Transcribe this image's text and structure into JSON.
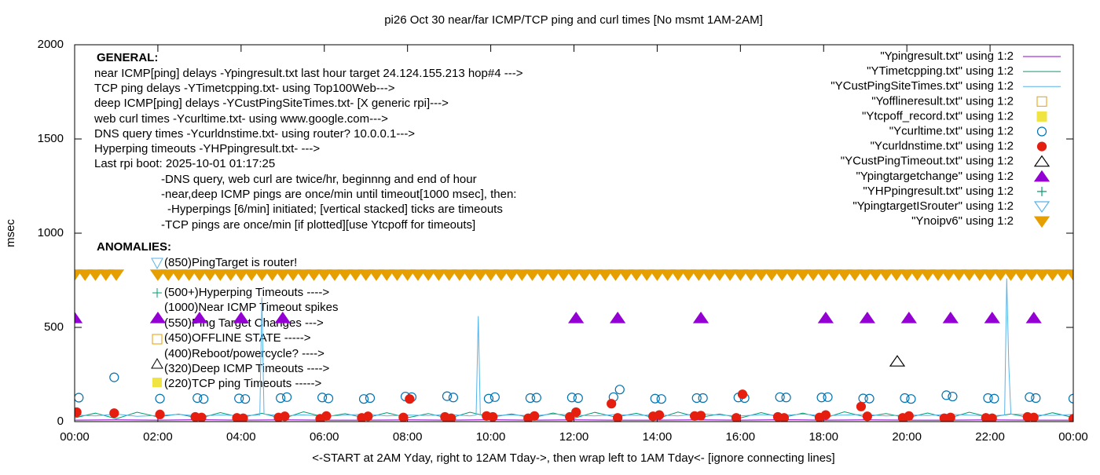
{
  "chart_data": {
    "type": "line",
    "title": "pi26 Oct 30  near/far ICMP/TCP ping and curl times [No msmt 1AM-2AM]",
    "xlabel": "<-START at 2AM Yday, right to 12AM Tday->, then wrap left to 1AM Tday<- [ignore connecting lines]",
    "ylabel": "msec",
    "xlim": [
      0,
      24
    ],
    "ylim": [
      0,
      2000
    ],
    "xticks": [
      {
        "value": 0,
        "label": "00:00"
      },
      {
        "value": 2,
        "label": "02:00"
      },
      {
        "value": 4,
        "label": "04:00"
      },
      {
        "value": 6,
        "label": "06:00"
      },
      {
        "value": 8,
        "label": "08:00"
      },
      {
        "value": 10,
        "label": "10:00"
      },
      {
        "value": 12,
        "label": "12:00"
      },
      {
        "value": 14,
        "label": "14:00"
      },
      {
        "value": 16,
        "label": "16:00"
      },
      {
        "value": 18,
        "label": "18:00"
      },
      {
        "value": 20,
        "label": "20:00"
      },
      {
        "value": 22,
        "label": "22:00"
      },
      {
        "value": 24,
        "label": "00:00"
      }
    ],
    "yticks": [
      0,
      500,
      1000,
      1500,
      2000
    ],
    "legend": "top-right",
    "annotations": [
      "GENERAL:",
      "near ICMP[ping] delays -Ypingresult.txt last hour target 24.124.155.213 hop#4 --->",
      "TCP ping delays -YTimetcpping.txt- using Top100Web--->",
      "deep ICMP[ping] delays -YCustPingSiteTimes.txt- [X generic rpi]--->",
      "web curl times -Ycurltime.txt- using www.google.com--->",
      "DNS query times -Ycurldnstime.txt- using router? 10.0.0.1--->",
      "Hyperping timeouts -YHPpingresult.txt- --->",
      "Last rpi boot: 2025-10-01 01:17:25",
      "-DNS query, web curl are twice/hr, beginnng and end of hour",
      "-near,deep ICMP pings are once/min until timeout[1000 msec], then:",
      "-Hyperpings [6/min] initiated; [vertical stacked] ticks are timeouts",
      "-TCP pings are once/min [if plotted][use Ytcpoff for timeouts]",
      "ANOMALIES:",
      "(850)PingTarget is router!",
      "(500+)Hyperping Timeouts ---->",
      "(1000)Near ICMP Timeout spikes",
      "(550)Ping Target Changes --->",
      "(450)OFFLINE STATE ----->",
      "(400)Reboot/powercycle? ---->",
      "(320)Deep ICMP Timeouts ---->",
      "(220)TCP ping Timeouts ----->"
    ],
    "series": [
      {
        "name": "\"Ypingresult.txt\" using 1:2",
        "color": "#9400d3",
        "style": "line",
        "x": [
          0,
          1,
          2,
          3,
          4,
          5,
          6,
          7,
          8,
          9,
          10,
          11,
          12,
          13,
          14,
          15,
          16,
          17,
          18,
          19,
          20,
          21,
          22,
          23,
          24
        ],
        "values": [
          8,
          9,
          8,
          10,
          8,
          9,
          8,
          8,
          9,
          8,
          10,
          8,
          9,
          8,
          8,
          9,
          8,
          10,
          8,
          9,
          8,
          8,
          9,
          8,
          8
        ]
      },
      {
        "name": "\"YTimetcpping.txt\" using 1:2",
        "color": "#009e73",
        "style": "line",
        "x": [
          0,
          0.5,
          1,
          1.5,
          2,
          2.5,
          3,
          3.5,
          4,
          4.5,
          5,
          5.5,
          6,
          6.5,
          7,
          7.5,
          8,
          8.5,
          9,
          9.5,
          10,
          10.5,
          11,
          11.5,
          12,
          12.5,
          13,
          13.5,
          14,
          14.5,
          15,
          15.5,
          16,
          16.5,
          17,
          17.5,
          18,
          18.5,
          19,
          19.5,
          20,
          20.5,
          21,
          21.5,
          22,
          22.5,
          23,
          23.5,
          24
        ],
        "values": [
          20,
          45,
          15,
          50,
          25,
          40,
          18,
          48,
          22,
          44,
          16,
          52,
          24,
          42,
          19,
          47,
          21,
          43,
          17,
          50,
          23,
          41,
          20,
          46,
          18,
          49,
          24,
          44,
          16,
          51,
          22,
          40,
          19,
          48,
          21,
          45,
          17,
          52,
          25,
          43,
          20,
          46,
          18,
          50,
          23,
          41,
          19,
          47,
          22
        ]
      },
      {
        "name": "\"YCustPingSiteTimes.txt\" using 1:2",
        "color": "#56b4e9",
        "style": "line",
        "x": [
          0,
          0.5,
          1,
          1.5,
          2,
          2.5,
          3,
          3.5,
          4,
          4.45,
          4.5,
          4.55,
          5,
          5.5,
          6,
          6.5,
          7,
          7.5,
          8,
          8.5,
          9,
          9.5,
          9.65,
          9.7,
          9.75,
          10,
          10.5,
          11,
          11.5,
          12,
          12.5,
          13,
          13.5,
          14,
          14.5,
          15,
          15.5,
          16,
          16.5,
          17,
          17.5,
          18,
          18.5,
          19,
          19.5,
          20,
          20.5,
          21,
          21.5,
          22,
          22.35,
          22.4,
          22.45,
          22.5,
          23,
          23.5,
          24
        ],
        "values": [
          35,
          30,
          40,
          28,
          33,
          38,
          30,
          35,
          32,
          35,
          660,
          40,
          30,
          36,
          28,
          34,
          40,
          30,
          35,
          32,
          38,
          30,
          35,
          560,
          38,
          32,
          36,
          30,
          40,
          35,
          30,
          38,
          33,
          36,
          30,
          42,
          34,
          30,
          37,
          33,
          40,
          31,
          35,
          38,
          30,
          36,
          32,
          39,
          34,
          30,
          35,
          760,
          300,
          40,
          36,
          33,
          38
        ]
      },
      {
        "name": "\"Yofflineresult.txt\" using 1:2",
        "color": "#e69f00",
        "style": "points",
        "marker": "square",
        "x": [],
        "values": []
      },
      {
        "name": "\"Ytcpoff_record.txt\" using 1:2",
        "color": "#f0e442",
        "style": "points",
        "marker": "square-filled",
        "x": [],
        "values": []
      },
      {
        "name": "\"Ycurltime.txt\" using 1:2",
        "color": "#0072b2",
        "style": "points",
        "marker": "circle",
        "x": [
          0.1,
          0.95,
          2.05,
          2.95,
          3.1,
          3.95,
          4.1,
          4.95,
          5.1,
          5.95,
          6.1,
          6.95,
          7.1,
          7.95,
          8.1,
          8.95,
          9.1,
          9.95,
          10.1,
          10.95,
          11.1,
          11.95,
          12.1,
          12.95,
          13.1,
          13.95,
          14.1,
          14.95,
          15.1,
          15.95,
          16.1,
          16.95,
          17.1,
          17.95,
          18.1,
          18.95,
          19.1,
          19.95,
          20.1,
          20.95,
          21.1,
          21.95,
          22.1,
          22.95,
          23.1,
          24
        ],
        "values": [
          127,
          235,
          122,
          125,
          120,
          123,
          120,
          125,
          130,
          128,
          123,
          120,
          125,
          133,
          130,
          135,
          128,
          122,
          130,
          125,
          127,
          128,
          125,
          130,
          170,
          122,
          120,
          125,
          125,
          128,
          125,
          130,
          128,
          128,
          130,
          123,
          122,
          125,
          120,
          140,
          133,
          125,
          122,
          130,
          125,
          122
        ]
      },
      {
        "name": "\"Ycurldnstime.txt\" using 1:2",
        "color": "#e51e10",
        "style": "points",
        "marker": "circle-filled",
        "x": [
          0.05,
          0.95,
          2.05,
          2.9,
          3.05,
          3.9,
          4.05,
          4.9,
          5.05,
          5.9,
          6.05,
          6.9,
          7.05,
          7.9,
          8.05,
          8.9,
          9.05,
          9.9,
          10.05,
          10.9,
          11.05,
          11.9,
          12.05,
          12.9,
          13.05,
          13.9,
          14.05,
          14.9,
          15.05,
          15.9,
          16.05,
          16.9,
          17.05,
          17.9,
          18.05,
          18.9,
          19.05,
          19.9,
          20.05,
          20.9,
          21.05,
          21.9,
          22.05,
          22.9,
          23.05,
          24
        ],
        "values": [
          50,
          45,
          38,
          25,
          22,
          20,
          18,
          22,
          28,
          15,
          30,
          20,
          28,
          22,
          120,
          25,
          18,
          30,
          25,
          18,
          30,
          25,
          50,
          95,
          20,
          28,
          35,
          30,
          32,
          20,
          145,
          25,
          20,
          22,
          35,
          80,
          28,
          20,
          30,
          18,
          22,
          20,
          18,
          25,
          22,
          15
        ]
      },
      {
        "name": "\"YCustPingTimeout.txt\" using 1:2",
        "color": "#000000",
        "style": "points",
        "marker": "triangle",
        "x": [
          19.77
        ],
        "values": [
          320
        ]
      },
      {
        "name": "\"Ypingtargetchange\" using 1:2",
        "color": "#9400d3",
        "style": "points",
        "marker": "triangle-filled",
        "x": [
          0,
          2,
          3,
          4,
          5,
          12.05,
          13.05,
          15.05,
          18.05,
          19.05,
          20.05,
          21.05,
          22.05,
          23.05
        ],
        "values": [
          550,
          550,
          550,
          550,
          550,
          550,
          550,
          550,
          550,
          550,
          550,
          550,
          550,
          550
        ]
      },
      {
        "name": "\"YHPpingresult.txt\" using 1:2",
        "color": "#009e73",
        "style": "points",
        "marker": "plus",
        "x": [],
        "values": []
      },
      {
        "name": "\"YpingtargetISrouter\" using 1:2",
        "color": "#56b4e9",
        "style": "points",
        "marker": "triangle-down",
        "x": [],
        "values": []
      },
      {
        "name": "\"Ynoipv6\" using 1:2",
        "color": "#e69f00",
        "style": "points",
        "marker": "triangle-down-filled",
        "x": [
          0,
          0.25,
          0.5,
          0.75,
          1,
          2,
          2.25,
          2.5,
          2.75,
          3,
          3.25,
          3.5,
          3.75,
          4,
          4.25,
          4.5,
          4.75,
          5,
          5.25,
          5.5,
          5.75,
          6,
          6.25,
          6.5,
          6.75,
          7,
          7.25,
          7.5,
          7.75,
          8,
          8.25,
          8.5,
          8.75,
          9,
          9.25,
          9.5,
          9.75,
          10,
          10.25,
          10.5,
          10.75,
          11,
          11.25,
          11.5,
          11.75,
          12,
          12.25,
          12.5,
          12.75,
          13,
          13.25,
          13.5,
          13.75,
          14,
          14.25,
          14.5,
          14.75,
          15,
          15.25,
          15.5,
          15.75,
          16,
          16.25,
          16.5,
          16.75,
          17,
          17.25,
          17.5,
          17.75,
          18,
          18.25,
          18.5,
          18.75,
          19,
          19.25,
          19.5,
          19.75,
          20,
          20.25,
          20.5,
          20.75,
          21,
          21.25,
          21.5,
          21.75,
          22,
          22.25,
          22.5,
          22.75,
          23,
          23.25,
          23.5,
          23.75,
          24
        ],
        "values": [
          780,
          780,
          780,
          780,
          780,
          780,
          780,
          780,
          780,
          780,
          780,
          780,
          780,
          780,
          780,
          780,
          780,
          780,
          780,
          780,
          780,
          780,
          780,
          780,
          780,
          780,
          780,
          780,
          780,
          780,
          780,
          780,
          780,
          780,
          780,
          780,
          780,
          780,
          780,
          780,
          780,
          780,
          780,
          780,
          780,
          780,
          780,
          780,
          780,
          780,
          780,
          780,
          780,
          780,
          780,
          780,
          780,
          780,
          780,
          780,
          780,
          780,
          780,
          780,
          780,
          780,
          780,
          780,
          780,
          780,
          780,
          780,
          780,
          780,
          780,
          780,
          780,
          780,
          780,
          780,
          780,
          780,
          780,
          780,
          780,
          780,
          780,
          780,
          780,
          780,
          780,
          780,
          780,
          780
        ]
      }
    ]
  }
}
